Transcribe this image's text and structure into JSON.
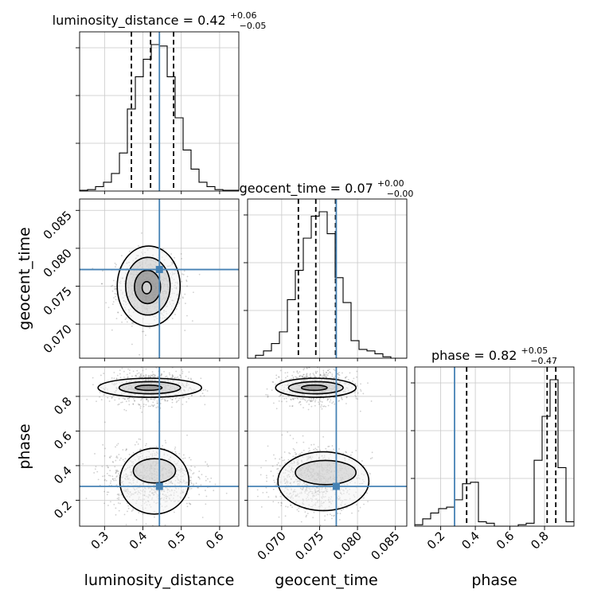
{
  "chart_data": {
    "type": "corner",
    "parameters": [
      "luminosity_distance",
      "geocent_time",
      "phase"
    ],
    "truth": {
      "luminosity_distance": 0.443,
      "geocent_time": 0.0772,
      "phase": 0.28
    },
    "titles": {
      "luminosity_distance": {
        "name": "luminosity_distance",
        "median": "0.42",
        "plus": "+0.06",
        "minus": "−0.05"
      },
      "geocent_time": {
        "name": "geocent_time",
        "median": "0.07",
        "plus": "+0.00",
        "minus": "−0.00"
      },
      "phase": {
        "name": "phase",
        "median": "0.82",
        "plus": "+0.05",
        "minus": "−0.47"
      }
    },
    "axes": {
      "luminosity_distance": {
        "range": [
          0.235,
          0.65
        ],
        "ticks": [
          0.3,
          0.4,
          0.5,
          0.6
        ],
        "tick_labels": [
          "0.3",
          "0.4",
          "0.5",
          "0.6"
        ]
      },
      "geocent_time": {
        "range": [
          0.0655,
          0.0865
        ],
        "ticks": [
          0.07,
          0.075,
          0.08,
          0.085
        ],
        "tick_labels": [
          "0.070",
          "0.075",
          "0.080",
          "0.085"
        ]
      },
      "phase": {
        "range": [
          0.05,
          0.97
        ],
        "ticks": [
          0.2,
          0.4,
          0.6,
          0.8
        ],
        "tick_labels": [
          "0.2",
          "0.4",
          "0.6",
          "0.8"
        ]
      }
    },
    "quantiles": {
      "luminosity_distance": [
        0.37,
        0.42,
        0.48
      ],
      "geocent_time": [
        0.0722,
        0.0745,
        0.0771
      ],
      "phase": [
        0.35,
        0.815,
        0.865
      ]
    },
    "histograms": {
      "luminosity_distance": {
        "edges": [
          0.235,
          0.2558,
          0.2765,
          0.2973,
          0.318,
          0.3388,
          0.3595,
          0.3803,
          0.401,
          0.4218,
          0.4425,
          0.4633,
          0.484,
          0.5048,
          0.5255,
          0.5463,
          0.567,
          0.5878,
          0.6085,
          0.6293,
          0.65
        ],
        "counts": [
          0.005,
          0.01,
          0.03,
          0.06,
          0.12,
          0.26,
          0.56,
          0.78,
          0.9,
          1.0,
          0.99,
          0.78,
          0.5,
          0.28,
          0.15,
          0.06,
          0.03,
          0.01,
          0.005,
          0.005
        ]
      },
      "geocent_time": {
        "edges": [
          0.0655,
          0.06655,
          0.0676,
          0.06865,
          0.0697,
          0.07075,
          0.0718,
          0.07285,
          0.0739,
          0.07495,
          0.076,
          0.07705,
          0.0781,
          0.07915,
          0.0802,
          0.08125,
          0.0823,
          0.08335,
          0.0844,
          0.08545,
          0.0865
        ],
        "counts": [
          0.0,
          0.02,
          0.05,
          0.1,
          0.18,
          0.4,
          0.6,
          0.82,
          0.97,
          1.0,
          0.85,
          0.55,
          0.38,
          0.12,
          0.06,
          0.05,
          0.03,
          0.01,
          0.0,
          0.0
        ]
      },
      "phase": {
        "edges": [
          0.05,
          0.096,
          0.142,
          0.188,
          0.234,
          0.28,
          0.326,
          0.372,
          0.418,
          0.464,
          0.51,
          0.556,
          0.602,
          0.648,
          0.694,
          0.74,
          0.786,
          0.832,
          0.878,
          0.924,
          0.97
        ],
        "counts": [
          0.01,
          0.05,
          0.09,
          0.12,
          0.13,
          0.18,
          0.29,
          0.3,
          0.03,
          0.02,
          0.0,
          0.0,
          0.0,
          0.01,
          0.02,
          0.45,
          0.75,
          1.0,
          0.4,
          0.03
        ]
      }
    },
    "scatter_2d": [
      {
        "x": "luminosity_distance",
        "y": "geocent_time",
        "clusters": [
          {
            "cx": 0.415,
            "cy": 0.0748,
            "sx": 0.042,
            "sy": 0.0022
          }
        ],
        "contours": [
          {
            "cx": 0.415,
            "cy": 0.075,
            "rx": 0.082,
            "ry": 0.0053
          },
          {
            "cx": 0.413,
            "cy": 0.075,
            "rx": 0.058,
            "ry": 0.0038
          },
          {
            "cx": 0.412,
            "cy": 0.0749,
            "rx": 0.034,
            "ry": 0.0022
          },
          {
            "cx": 0.41,
            "cy": 0.0748,
            "rx": 0.012,
            "ry": 0.0008
          }
        ]
      },
      {
        "x": "luminosity_distance",
        "y": "phase",
        "clusters": [
          {
            "cx": 0.42,
            "cy": 0.85,
            "sx": 0.05,
            "sy": 0.045
          },
          {
            "cx": 0.42,
            "cy": 0.33,
            "sx": 0.06,
            "sy": 0.09
          }
        ],
        "contours": [
          {
            "cx": 0.418,
            "cy": 0.85,
            "rx": 0.135,
            "ry": 0.055
          },
          {
            "cx": 0.418,
            "cy": 0.85,
            "rx": 0.08,
            "ry": 0.035
          },
          {
            "cx": 0.415,
            "cy": 0.85,
            "rx": 0.035,
            "ry": 0.015
          },
          {
            "cx": 0.43,
            "cy": 0.31,
            "rx": 0.09,
            "ry": 0.19
          },
          {
            "cx": 0.43,
            "cy": 0.37,
            "rx": 0.055,
            "ry": 0.07
          }
        ]
      },
      {
        "x": "geocent_time",
        "y": "phase",
        "clusters": [
          {
            "cx": 0.0745,
            "cy": 0.85,
            "sx": 0.0023,
            "sy": 0.045
          },
          {
            "cx": 0.0745,
            "cy": 0.32,
            "sx": 0.003,
            "sy": 0.09
          }
        ],
        "contours": [
          {
            "cx": 0.0745,
            "cy": 0.85,
            "rx": 0.0053,
            "ry": 0.055
          },
          {
            "cx": 0.0745,
            "cy": 0.85,
            "rx": 0.0036,
            "ry": 0.035
          },
          {
            "cx": 0.0743,
            "cy": 0.85,
            "rx": 0.0017,
            "ry": 0.015
          },
          {
            "cx": 0.0755,
            "cy": 0.31,
            "rx": 0.006,
            "ry": 0.17
          },
          {
            "cx": 0.0758,
            "cy": 0.36,
            "rx": 0.004,
            "ry": 0.07
          }
        ]
      }
    ]
  }
}
